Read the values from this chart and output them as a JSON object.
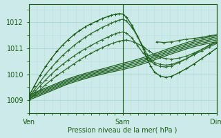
{
  "bg_color": "#cceae7",
  "grid_color_major": "#aad4d0",
  "grid_color_minor": "#bbdeda",
  "line_color_dark": "#1a5c1a",
  "ylim": [
    1008.5,
    1012.7
  ],
  "yticks": [
    1009,
    1010,
    1011,
    1012
  ],
  "xlabel": "Pression niveau de la mer( hPa )",
  "xtick_labels": [
    "Ven",
    "Sam",
    "Dim"
  ],
  "xtick_pos": [
    0.0,
    0.5,
    1.0
  ],
  "marker_size": 3,
  "series": [
    {
      "x": [
        0.0,
        0.05,
        0.1,
        0.15,
        0.2,
        0.25,
        0.3,
        0.35,
        0.4,
        0.45,
        0.5,
        0.55,
        0.6,
        0.65,
        0.7,
        0.75,
        0.8,
        0.85,
        0.9,
        0.95,
        1.0
      ],
      "y": [
        1009.0,
        1009.15,
        1009.3,
        1009.45,
        1009.6,
        1009.72,
        1009.83,
        1009.93,
        1010.02,
        1010.1,
        1010.18,
        1010.27,
        1010.38,
        1010.5,
        1010.63,
        1010.76,
        1010.88,
        1011.0,
        1011.1,
        1011.18,
        1011.25
      ],
      "color": "#1a5c1a",
      "lw": 0.9,
      "marker": null
    },
    {
      "x": [
        0.0,
        0.05,
        0.1,
        0.15,
        0.2,
        0.25,
        0.3,
        0.35,
        0.4,
        0.45,
        0.5,
        0.55,
        0.6,
        0.65,
        0.7,
        0.75,
        0.8,
        0.85,
        0.9,
        0.95,
        1.0
      ],
      "y": [
        1009.05,
        1009.2,
        1009.35,
        1009.5,
        1009.65,
        1009.77,
        1009.88,
        1009.98,
        1010.07,
        1010.15,
        1010.24,
        1010.33,
        1010.44,
        1010.56,
        1010.69,
        1010.82,
        1010.94,
        1011.06,
        1011.16,
        1011.24,
        1011.32
      ],
      "color": "#1a5c1a",
      "lw": 0.9,
      "marker": null
    },
    {
      "x": [
        0.0,
        0.05,
        0.1,
        0.15,
        0.2,
        0.25,
        0.3,
        0.35,
        0.4,
        0.45,
        0.5,
        0.55,
        0.6,
        0.65,
        0.7,
        0.75,
        0.8,
        0.85,
        0.9,
        0.95,
        1.0
      ],
      "y": [
        1009.1,
        1009.25,
        1009.4,
        1009.55,
        1009.7,
        1009.82,
        1009.93,
        1010.03,
        1010.12,
        1010.2,
        1010.3,
        1010.39,
        1010.5,
        1010.62,
        1010.75,
        1010.88,
        1011.0,
        1011.12,
        1011.22,
        1011.3,
        1011.38
      ],
      "color": "#1a5c1a",
      "lw": 0.9,
      "marker": null
    },
    {
      "x": [
        0.0,
        0.05,
        0.1,
        0.15,
        0.2,
        0.25,
        0.3,
        0.35,
        0.4,
        0.45,
        0.5,
        0.55,
        0.6,
        0.65,
        0.7,
        0.75,
        0.8,
        0.85,
        0.9,
        0.95,
        1.0
      ],
      "y": [
        1009.15,
        1009.3,
        1009.45,
        1009.6,
        1009.75,
        1009.87,
        1009.98,
        1010.08,
        1010.17,
        1010.26,
        1010.36,
        1010.45,
        1010.56,
        1010.68,
        1010.81,
        1010.94,
        1011.06,
        1011.18,
        1011.28,
        1011.36,
        1011.44
      ],
      "color": "#1a5c1a",
      "lw": 0.9,
      "marker": null
    },
    {
      "x": [
        0.0,
        0.05,
        0.1,
        0.15,
        0.2,
        0.25,
        0.3,
        0.35,
        0.4,
        0.45,
        0.5,
        0.55,
        0.6,
        0.65,
        0.7,
        0.75,
        0.8,
        0.85,
        0.9,
        0.95,
        1.0
      ],
      "y": [
        1009.2,
        1009.35,
        1009.5,
        1009.65,
        1009.8,
        1009.92,
        1010.03,
        1010.13,
        1010.22,
        1010.32,
        1010.42,
        1010.51,
        1010.62,
        1010.74,
        1010.87,
        1011.0,
        1011.12,
        1011.24,
        1011.34,
        1011.42,
        1011.5
      ],
      "color": "#1a5c1a",
      "lw": 0.9,
      "marker": null
    },
    {
      "x": [
        0.0,
        0.03,
        0.06,
        0.09,
        0.12,
        0.15,
        0.18,
        0.21,
        0.24,
        0.27,
        0.3,
        0.33,
        0.36,
        0.39,
        0.42,
        0.45,
        0.48,
        0.5,
        0.52,
        0.56,
        0.6,
        0.64,
        0.67,
        0.7,
        0.73,
        0.76,
        0.8,
        0.84,
        0.88,
        0.92,
        0.96,
        1.0
      ],
      "y": [
        1009.0,
        1009.2,
        1009.4,
        1009.6,
        1009.78,
        1009.95,
        1010.1,
        1010.25,
        1010.4,
        1010.55,
        1010.68,
        1010.8,
        1010.92,
        1011.02,
        1011.12,
        1011.2,
        1011.27,
        1011.3,
        1011.32,
        1011.25,
        1011.1,
        1010.9,
        1010.75,
        1010.65,
        1010.6,
        1010.58,
        1010.62,
        1010.7,
        1010.82,
        1010.95,
        1011.1,
        1011.22
      ],
      "color": "#2d6a2d",
      "lw": 0.9,
      "marker": "+"
    },
    {
      "x": [
        0.0,
        0.03,
        0.06,
        0.09,
        0.12,
        0.15,
        0.18,
        0.21,
        0.24,
        0.27,
        0.3,
        0.33,
        0.36,
        0.39,
        0.42,
        0.44,
        0.46,
        0.48,
        0.5,
        0.52,
        0.55,
        0.58,
        0.61,
        0.64,
        0.67,
        0.7,
        0.73,
        0.76,
        0.8,
        0.84,
        0.88,
        0.92,
        0.96,
        1.0
      ],
      "y": [
        1009.05,
        1009.3,
        1009.55,
        1009.78,
        1010.0,
        1010.2,
        1010.38,
        1010.55,
        1010.7,
        1010.85,
        1010.98,
        1011.1,
        1011.22,
        1011.33,
        1011.43,
        1011.5,
        1011.56,
        1011.6,
        1011.63,
        1011.58,
        1011.4,
        1011.1,
        1010.8,
        1010.6,
        1010.45,
        1010.38,
        1010.35,
        1010.38,
        1010.48,
        1010.6,
        1010.75,
        1010.9,
        1011.05,
        1011.18
      ],
      "color": "#2d6a2d",
      "lw": 0.9,
      "marker": "+"
    },
    {
      "x": [
        0.0,
        0.03,
        0.06,
        0.09,
        0.12,
        0.15,
        0.18,
        0.21,
        0.24,
        0.27,
        0.3,
        0.33,
        0.36,
        0.39,
        0.42,
        0.44,
        0.46,
        0.48,
        0.5,
        0.52,
        0.55,
        0.58,
        0.61,
        0.63,
        0.65,
        0.67,
        0.7,
        0.73,
        0.76,
        0.8,
        0.84,
        0.88,
        0.92,
        0.96,
        1.0
      ],
      "y": [
        1009.1,
        1009.4,
        1009.7,
        1010.0,
        1010.25,
        1010.5,
        1010.72,
        1010.92,
        1011.1,
        1011.27,
        1011.42,
        1011.56,
        1011.68,
        1011.8,
        1011.9,
        1011.97,
        1012.03,
        1012.08,
        1012.12,
        1012.05,
        1011.8,
        1011.45,
        1011.05,
        1010.75,
        1010.5,
        1010.38,
        1010.3,
        1010.28,
        1010.32,
        1010.45,
        1010.6,
        1010.78,
        1010.95,
        1011.12,
        1011.25
      ],
      "color": "#2d6a2d",
      "lw": 0.9,
      "marker": "+"
    },
    {
      "x": [
        0.0,
        0.03,
        0.06,
        0.09,
        0.12,
        0.15,
        0.18,
        0.21,
        0.24,
        0.27,
        0.3,
        0.33,
        0.36,
        0.39,
        0.42,
        0.44,
        0.46,
        0.48,
        0.5,
        0.52,
        0.55,
        0.58,
        0.61,
        0.63,
        0.65,
        0.67,
        0.7,
        0.73,
        0.76,
        0.8,
        0.84,
        0.88,
        0.92,
        0.96,
        1.0
      ],
      "y": [
        1009.15,
        1009.55,
        1009.95,
        1010.3,
        1010.6,
        1010.88,
        1011.12,
        1011.33,
        1011.52,
        1011.68,
        1011.82,
        1011.94,
        1012.04,
        1012.14,
        1012.22,
        1012.27,
        1012.31,
        1012.33,
        1012.32,
        1012.2,
        1011.88,
        1011.45,
        1010.98,
        1010.6,
        1010.3,
        1010.08,
        1009.93,
        1009.88,
        1009.92,
        1010.06,
        1010.22,
        1010.4,
        1010.6,
        1010.8,
        1011.0
      ],
      "color": "#1a5c1a",
      "lw": 1.0,
      "marker": "+"
    },
    {
      "x": [
        0.68,
        0.72,
        0.76,
        0.8,
        0.84,
        0.88,
        0.92,
        0.96,
        1.0
      ],
      "y": [
        1011.25,
        1011.22,
        1011.25,
        1011.3,
        1011.35,
        1011.38,
        1011.42,
        1011.48,
        1011.52
      ],
      "color": "#2d6a2d",
      "lw": 0.9,
      "marker": "+"
    }
  ]
}
